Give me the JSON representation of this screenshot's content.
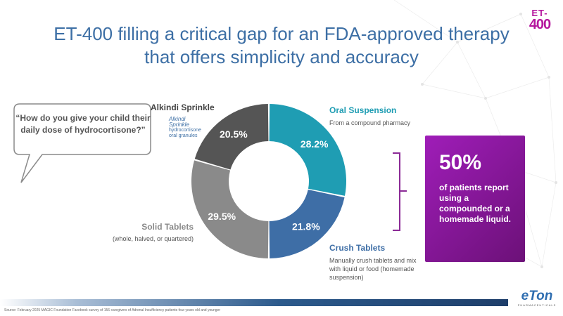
{
  "logo": {
    "line1": "ET-",
    "line2": "400",
    "color": "#b5179e"
  },
  "title": {
    "line1": "ET-400 filling a critical gap for an FDA-approved therapy",
    "line2": "that offers simplicity and accuracy"
  },
  "question": "“How do you give your child their daily dose of hydrocortisone?”",
  "chart_data": {
    "type": "donut",
    "slices": [
      {
        "label": "Oral Suspension",
        "value": 28.2,
        "value_label": "28.2%",
        "description": "From a compound pharmacy",
        "color": "#1f9db3"
      },
      {
        "label": "Crush Tablets",
        "value": 21.8,
        "value_label": "21.8%",
        "description": "Manually crush tablets and mix with liquid or food (homemade suspension)",
        "color": "#3e6ea6"
      },
      {
        "label": "Solid Tablets",
        "value": 29.5,
        "value_label": "29.5%",
        "description": "(whole, halved, or quartered)",
        "color": "#8a8a8a"
      },
      {
        "label": "Alkindi Sprinkle",
        "value": 20.5,
        "value_label": "20.5%",
        "description": "",
        "color": "#555555"
      }
    ]
  },
  "alkindi_logo": {
    "brand_line1": "Alkindi",
    "brand_line2": "Sprinkle",
    "tag_line1": "hydrocortisone",
    "tag_line2": "oral granules"
  },
  "callout": {
    "big": "50%",
    "text": "of patients report using a compounded or a homemade liquid.",
    "color": "#9f1db8"
  },
  "footnote": "Source: February 2025 MAGIC Foundation Facebook survey of 156 caregivers of Adrenal Insufficiency patients four years old and younger",
  "eton": {
    "name": "eTon",
    "sub": "PHARMACEUTICALS"
  }
}
